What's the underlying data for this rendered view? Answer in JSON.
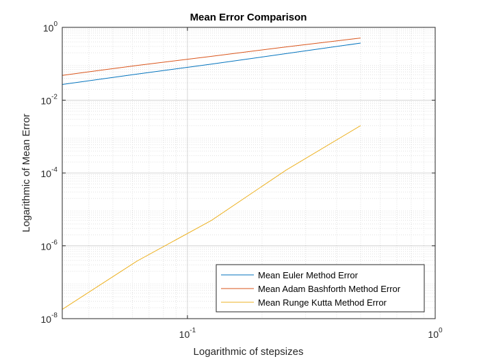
{
  "chart_data": {
    "type": "line",
    "title": "Mean Error Comparison",
    "xlabel": "Logarithmic of stepsizes",
    "ylabel": "Logarithmic of Mean Error",
    "xscale": "log",
    "yscale": "log",
    "xlim": [
      0.03125,
      1
    ],
    "ylim": [
      1e-08,
      1
    ],
    "grid": true,
    "minor_grid": true,
    "legend_position": "bottom-right",
    "x_ticks": [
      {
        "value": 0.1,
        "base": "10",
        "exp": "-1"
      },
      {
        "value": 1,
        "base": "10",
        "exp": "0"
      }
    ],
    "y_ticks": [
      {
        "value": 1e-08,
        "base": "10",
        "exp": "-8"
      },
      {
        "value": 1e-06,
        "base": "10",
        "exp": "-6"
      },
      {
        "value": 0.0001,
        "base": "10",
        "exp": "-4"
      },
      {
        "value": 0.01,
        "base": "10",
        "exp": "-2"
      },
      {
        "value": 1,
        "base": "10",
        "exp": "0"
      }
    ],
    "series": [
      {
        "name": "Mean Euler Method Error",
        "color": "#0072BD",
        "x": [
          0.03125,
          0.0625,
          0.125,
          0.25,
          0.5
        ],
        "y": [
          0.027,
          0.052,
          0.098,
          0.19,
          0.37
        ]
      },
      {
        "name": "Mean Adam Bashforth Method Error",
        "color": "#D95319",
        "x": [
          0.03125,
          0.0625,
          0.125,
          0.25,
          0.5
        ],
        "y": [
          0.048,
          0.09,
          0.16,
          0.29,
          0.51
        ]
      },
      {
        "name": "Mean Runge Kutta Method Error",
        "color": "#EDB120",
        "x": [
          0.03125,
          0.0625,
          0.125,
          0.25,
          0.5
        ],
        "y": [
          1.8e-08,
          3.8e-07,
          5e-06,
          0.00012,
          0.002
        ]
      }
    ]
  }
}
